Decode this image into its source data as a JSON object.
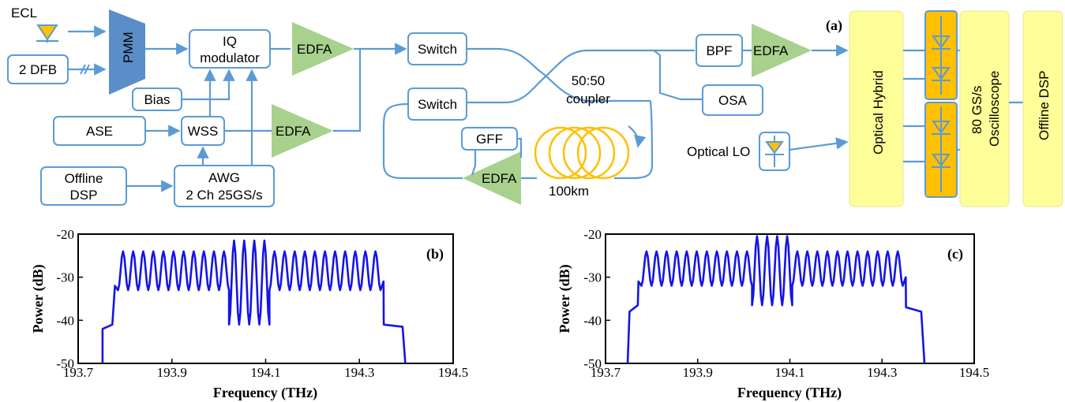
{
  "figure_labels": {
    "a": "(a)",
    "b": "(b)",
    "c": "(c)"
  },
  "colors": {
    "line": "#5b9bd5",
    "amplifier": "#a9d18e",
    "receiver": "#ffff99",
    "photodiode": "#ffc000",
    "trace": "#1515e6",
    "pmm": "#5b8ec9"
  },
  "setup": {
    "ecl": "ECL",
    "dfb": "2 DFB",
    "pmm": "PMM",
    "iq_modulator": {
      "line1": "IQ",
      "line2": "modulator"
    },
    "bias": "Bias",
    "ase": "ASE",
    "wss": "WSS",
    "offline_dsp_tx": {
      "line1": "Offline",
      "line2": "DSP"
    },
    "awg": {
      "line1": "AWG",
      "line2": "2 Ch 25GS/s"
    },
    "edfa": "EDFA",
    "switch": "Switch",
    "coupler": {
      "line1": "50:50",
      "line2": "coupler"
    },
    "gff": "GFF",
    "fiber": "100km",
    "bpf": "BPF",
    "osa": "OSA",
    "optical_lo": "Optical LO",
    "optical_hybrid": "Optical Hybrid",
    "oscilloscope": {
      "line1": "80 GS/s",
      "line2": "Oscilloscope"
    },
    "offline_dsp_rx": "Offline DSP"
  },
  "chart_data": [
    {
      "type": "line",
      "panel": "(b)",
      "xlabel": "Frequency (THz)",
      "ylabel": "Power (dB)",
      "xlim": [
        193.7,
        194.5
      ],
      "ylim": [
        -50,
        -20
      ],
      "xticks": [
        "193.7",
        "193.9",
        "194.1",
        "194.3",
        "194.5"
      ],
      "yticks": [
        "-20",
        "-30",
        "-40",
        "-50"
      ],
      "shape": {
        "x_start": 193.752,
        "x_end": 194.398,
        "shoulder_left": {
          "x": [
            193.752,
            193.773
          ],
          "y": [
            -42,
            -41
          ]
        },
        "shoulder_right": {
          "x": [
            194.352,
            194.392
          ],
          "y": [
            -41,
            -41.5
          ]
        },
        "band_start": 193.785,
        "band_end": 194.345,
        "peaks_outer": -24,
        "troughs_outer": -33,
        "center_band": [
          194.02,
          194.1
        ],
        "peaks_center": -21.5,
        "troughs_center": -41,
        "subcarrier_count": 26
      }
    },
    {
      "type": "line",
      "panel": "(c)",
      "xlabel": "Frequency (THz)",
      "ylabel": "Power (dB)",
      "xlim": [
        193.7,
        194.5
      ],
      "ylim": [
        -50,
        -20
      ],
      "xticks": [
        "193.7",
        "193.9",
        "194.1",
        "194.3",
        "194.5"
      ],
      "yticks": [
        "-20",
        "-30",
        "-40",
        "-50"
      ],
      "shape": {
        "x_start": 193.748,
        "x_end": 194.392,
        "shoulder_left": {
          "x": [
            193.752,
            193.77
          ],
          "y": [
            -38,
            -36.5
          ]
        },
        "shoulder_right": {
          "x": [
            194.352,
            194.385
          ],
          "y": [
            -37,
            -38
          ]
        },
        "band_start": 193.778,
        "band_end": 194.345,
        "peaks_outer": -24,
        "troughs_outer": -32,
        "center_band": [
          194.02,
          194.1
        ],
        "peaks_center": -20.5,
        "troughs_center": -36.5,
        "subcarrier_count": 26
      }
    }
  ]
}
